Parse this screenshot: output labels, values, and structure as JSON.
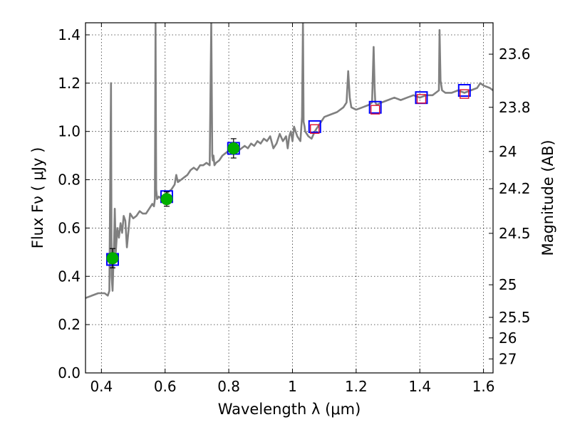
{
  "chart_data": {
    "type": "line",
    "xlabel": "Wavelength  λ (μm)",
    "ylabel": "Flux  F_ν  ( μJy )",
    "ylabel_right": "Magnitude (AB)",
    "xlim": [
      0.35,
      1.63
    ],
    "ylim": [
      0.0,
      1.45
    ],
    "grid": true,
    "x_ticks": [
      0.4,
      0.6,
      0.8,
      1.0,
      1.2,
      1.4,
      1.6
    ],
    "x_tick_labels": [
      "0.4",
      "0.6",
      "0.8",
      "1",
      "1.2",
      "1.4",
      "1.6"
    ],
    "y_ticks": [
      0.0,
      0.2,
      0.4,
      0.6,
      0.8,
      1.0,
      1.2,
      1.4
    ],
    "y_tick_labels": [
      "0.0",
      "0.2",
      "0.4",
      "0.6",
      "0.8",
      "1.0",
      "1.2",
      "1.4"
    ],
    "right_axis_ticks": [
      {
        "label": "23.6",
        "flux": 1.32
      },
      {
        "label": "23.8",
        "flux": 1.1
      },
      {
        "label": "24",
        "flux": 0.917
      },
      {
        "label": "24.2",
        "flux": 0.763
      },
      {
        "label": "24.5",
        "flux": 0.578
      },
      {
        "label": "25",
        "flux": 0.365
      },
      {
        "label": "25.5",
        "flux": 0.23
      },
      {
        "label": "26",
        "flux": 0.145
      },
      {
        "label": "27",
        "flux": 0.058
      }
    ],
    "series": [
      {
        "kind": "model-spectrum",
        "color": "#808080",
        "x": [
          0.35,
          0.37,
          0.39,
          0.41,
          0.42,
          0.425,
          0.43,
          0.432,
          0.435,
          0.44,
          0.442,
          0.445,
          0.45,
          0.455,
          0.46,
          0.465,
          0.47,
          0.475,
          0.48,
          0.49,
          0.5,
          0.51,
          0.52,
          0.53,
          0.54,
          0.55,
          0.56,
          0.565,
          0.568,
          0.57,
          0.572,
          0.575,
          0.58,
          0.59,
          0.6,
          0.61,
          0.62,
          0.63,
          0.635,
          0.64,
          0.65,
          0.66,
          0.67,
          0.68,
          0.69,
          0.7,
          0.71,
          0.72,
          0.73,
          0.74,
          0.745,
          0.748,
          0.75,
          0.752,
          0.755,
          0.76,
          0.77,
          0.78,
          0.79,
          0.8,
          0.81,
          0.82,
          0.83,
          0.84,
          0.85,
          0.86,
          0.87,
          0.88,
          0.89,
          0.9,
          0.91,
          0.92,
          0.93,
          0.94,
          0.95,
          0.96,
          0.97,
          0.98,
          0.985,
          0.99,
          0.995,
          1.0,
          1.005,
          1.01,
          1.015,
          1.02,
          1.025,
          1.03,
          1.033,
          1.035,
          1.038,
          1.04,
          1.05,
          1.06,
          1.07,
          1.08,
          1.09,
          1.1,
          1.12,
          1.14,
          1.16,
          1.17,
          1.175,
          1.18,
          1.185,
          1.2,
          1.22,
          1.24,
          1.25,
          1.255,
          1.258,
          1.26,
          1.265,
          1.28,
          1.3,
          1.32,
          1.34,
          1.36,
          1.38,
          1.4,
          1.42,
          1.44,
          1.45,
          1.46,
          1.462,
          1.465,
          1.47,
          1.48,
          1.5,
          1.52,
          1.54,
          1.56,
          1.58,
          1.59,
          1.6,
          1.62,
          1.63
        ],
        "y": [
          0.31,
          0.32,
          0.33,
          0.33,
          0.32,
          0.34,
          1.2,
          0.4,
          0.34,
          0.55,
          0.68,
          0.5,
          0.6,
          0.56,
          0.62,
          0.58,
          0.65,
          0.63,
          0.52,
          0.66,
          0.64,
          0.65,
          0.67,
          0.66,
          0.66,
          0.68,
          0.7,
          0.69,
          0.72,
          1.45,
          0.76,
          0.72,
          0.73,
          0.72,
          0.74,
          0.75,
          0.76,
          0.78,
          0.82,
          0.79,
          0.8,
          0.81,
          0.82,
          0.84,
          0.85,
          0.84,
          0.86,
          0.86,
          0.87,
          0.86,
          1.45,
          0.9,
          0.88,
          0.9,
          0.86,
          0.87,
          0.88,
          0.9,
          0.91,
          0.92,
          0.93,
          0.94,
          0.92,
          0.93,
          0.94,
          0.93,
          0.95,
          0.94,
          0.96,
          0.95,
          0.97,
          0.96,
          0.98,
          0.93,
          0.95,
          0.99,
          0.96,
          0.98,
          0.93,
          0.98,
          1.0,
          0.96,
          1.02,
          1.0,
          0.98,
          0.97,
          0.96,
          1.06,
          1.45,
          1.04,
          1.02,
          1.0,
          0.98,
          0.97,
          1.0,
          1.02,
          1.04,
          1.06,
          1.07,
          1.08,
          1.1,
          1.12,
          1.25,
          1.14,
          1.1,
          1.09,
          1.1,
          1.11,
          1.12,
          1.35,
          1.18,
          1.12,
          1.11,
          1.12,
          1.13,
          1.14,
          1.13,
          1.14,
          1.15,
          1.14,
          1.15,
          1.15,
          1.16,
          1.17,
          1.42,
          1.21,
          1.17,
          1.16,
          1.16,
          1.17,
          1.16,
          1.17,
          1.18,
          1.2,
          1.19,
          1.18,
          1.17
        ]
      },
      {
        "kind": "observed-photometry",
        "marker": "filled-circle",
        "color": "#00b000",
        "x": [
          0.435,
          0.605,
          0.815
        ],
        "y": [
          0.475,
          0.72,
          0.93
        ],
        "yerr": [
          0.04,
          0.03,
          0.04
        ]
      },
      {
        "kind": "model-band-flux",
        "marker": "open-square",
        "color": "#0000ff",
        "x": [
          0.435,
          0.605,
          0.815,
          1.07,
          1.26,
          1.405,
          1.54
        ],
        "y": [
          0.47,
          0.73,
          0.93,
          1.02,
          1.1,
          1.14,
          1.17
        ]
      },
      {
        "kind": "predicted-flux",
        "marker": "open-square-small",
        "color": "#e01030",
        "x": [
          1.07,
          1.26,
          1.405,
          1.54
        ],
        "y": [
          1.01,
          1.09,
          1.135,
          1.155
        ]
      }
    ]
  }
}
